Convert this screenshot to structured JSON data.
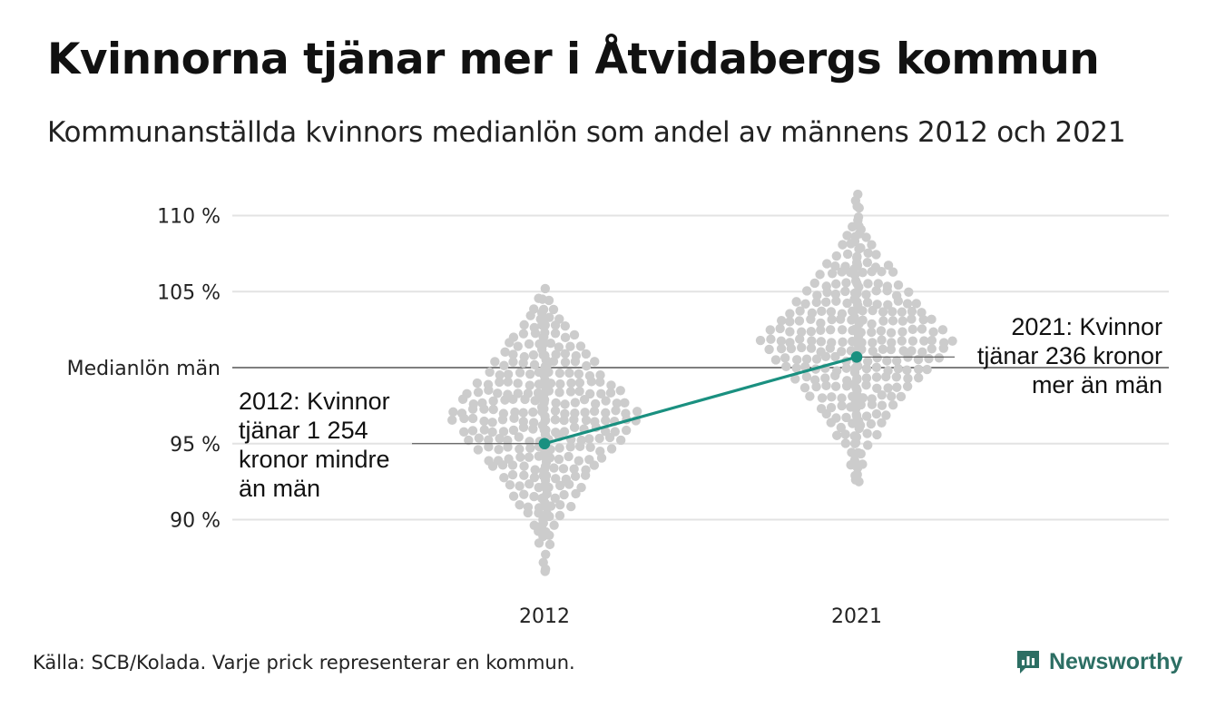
{
  "header": {
    "title": "Kvinnorna tjänar mer i Åtvidabergs kommun",
    "subtitle": "Kommunanställda kvinnors medianlön som andel av männens 2012 och 2021"
  },
  "footer": {
    "source": "Källa: SCB/Kolada. Varje prick representerar en kommun.",
    "brand": "Newsworthy"
  },
  "colors": {
    "dots": "#cccccc",
    "highlight": "#1a9080",
    "grid": "#e3e3e3",
    "reference_line": "#333333",
    "brand": "#2c6e63"
  },
  "chart_data": {
    "type": "scatter",
    "subtype": "beeswarm",
    "categories": [
      "2012",
      "2021"
    ],
    "y_ticks": [
      {
        "value": 90,
        "label": "90 %"
      },
      {
        "value": 95,
        "label": "95 %"
      },
      {
        "value": 100,
        "label": "Medianlön män"
      },
      {
        "value": 105,
        "label": "105 %"
      },
      {
        "value": 110,
        "label": "110 %"
      }
    ],
    "ylim": [
      86,
      111.5
    ],
    "grid": true,
    "reference_line": {
      "value": 100,
      "label": "Medianlön män"
    },
    "highlight": {
      "municipality": "Åtvidaberg",
      "values": [
        95.0,
        100.7
      ]
    },
    "annotations": [
      {
        "category": "2012",
        "lines": [
          "2012: Kvinnor",
          "tjänar 1 254",
          "kronor mindre",
          "än män"
        ]
      },
      {
        "category": "2021",
        "lines": [
          "2021: Kvinnor",
          "tjänar 236 kronor",
          "mer än män"
        ]
      }
    ],
    "distributions": [
      {
        "category": "2012",
        "min": 86.6,
        "max": 105.2,
        "center": 96.8,
        "points": [
          105.2,
          104.5,
          103.6,
          103.2,
          102.8,
          102.3,
          102.0,
          101.6,
          101.2,
          100.8,
          100.5,
          100.1,
          99.8,
          99.5,
          99.2,
          98.9,
          98.6,
          98.3,
          98.0,
          97.7,
          97.4,
          97.1,
          96.8,
          96.5,
          96.2,
          95.9,
          95.6,
          95.3,
          95.0,
          94.7,
          94.4,
          94.1,
          93.8,
          93.5,
          93.2,
          92.9,
          92.6,
          92.3,
          92.0,
          91.7,
          91.4,
          91.1,
          90.8,
          90.4,
          90.0,
          89.6,
          89.2,
          88.9,
          86.6
        ]
      },
      {
        "category": "2021",
        "min": 92.5,
        "max": 111.4,
        "center": 101.7,
        "points": [
          111.4,
          110.5,
          109.9,
          109.3,
          108.8,
          108.3,
          107.8,
          107.3,
          106.9,
          106.5,
          106.1,
          105.7,
          105.3,
          104.9,
          104.5,
          104.1,
          103.7,
          103.3,
          102.9,
          102.5,
          102.1,
          101.7,
          101.3,
          100.9,
          100.5,
          100.1,
          99.7,
          99.3,
          98.9,
          98.5,
          98.1,
          97.7,
          97.3,
          96.9,
          96.5,
          96.0,
          95.5,
          95.0,
          94.4,
          93.9,
          93.4,
          92.9,
          92.5
        ]
      }
    ]
  }
}
